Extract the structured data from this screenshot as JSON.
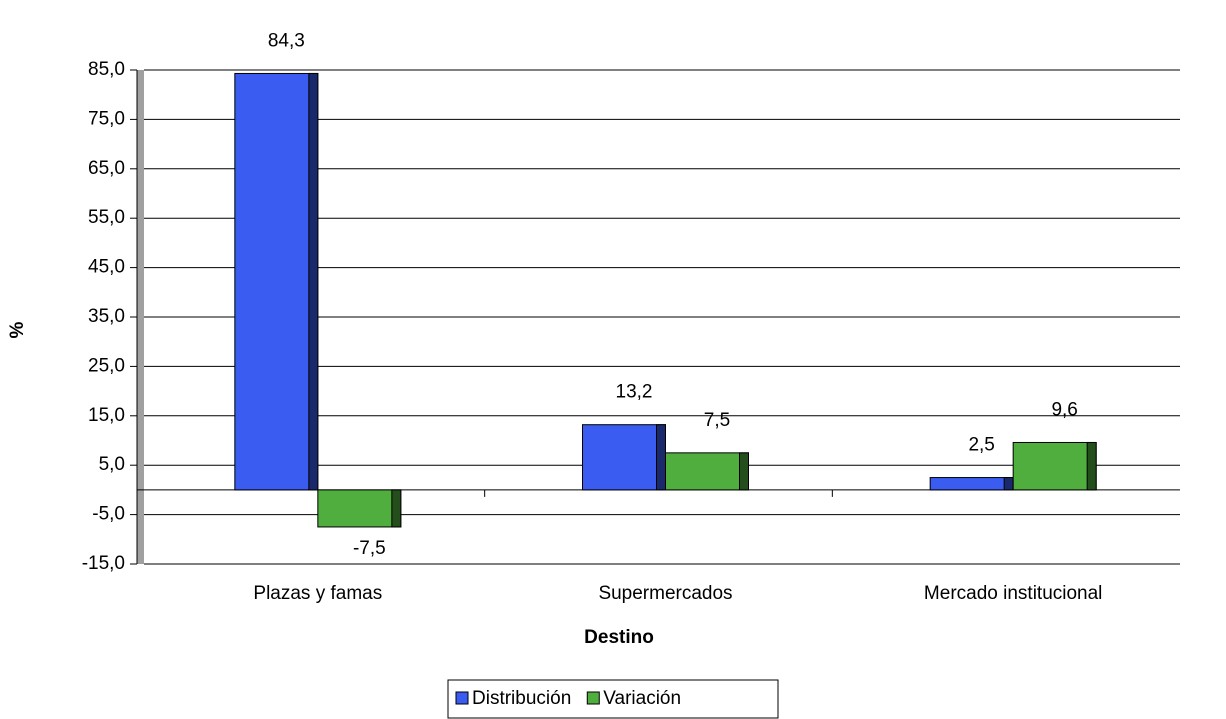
{
  "chart_data": {
    "type": "bar",
    "xlabel": "Destino",
    "ylabel": "%",
    "categories": [
      "Plazas y famas",
      "Supermercados",
      "Mercado institucional"
    ],
    "series": [
      {
        "name": "Distribución",
        "color": "#3a5cf0",
        "values": [
          84.3,
          13.2,
          2.5
        ],
        "value_labels": [
          "84,3",
          "13,2",
          "2,5"
        ]
      },
      {
        "name": "Variación",
        "color": "#4fae3e",
        "values": [
          -7.5,
          7.5,
          9.6
        ],
        "value_labels": [
          "-7,5",
          "7,5",
          "9,6"
        ]
      }
    ],
    "ylim": [
      -15,
      85
    ],
    "yticks": [
      {
        "value": -15,
        "label": "-15,0"
      },
      {
        "value": -5,
        "label": "-5,0"
      },
      {
        "value": 5,
        "label": "5,0"
      },
      {
        "value": 15,
        "label": "15,0"
      },
      {
        "value": 25,
        "label": "25,0"
      },
      {
        "value": 35,
        "label": "35,0"
      },
      {
        "value": 45,
        "label": "45,0"
      },
      {
        "value": 55,
        "label": "55,0"
      },
      {
        "value": 65,
        "label": "65,0"
      },
      {
        "value": 75,
        "label": "75,0"
      },
      {
        "value": 85,
        "label": "85,0"
      }
    ],
    "grid": true,
    "legend": "bottom"
  }
}
